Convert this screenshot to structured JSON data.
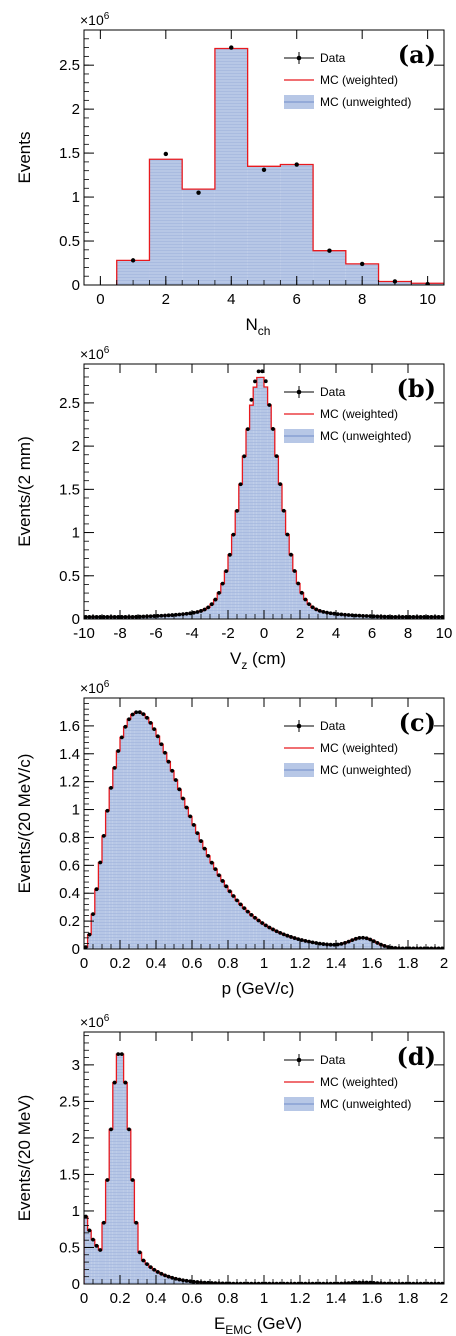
{
  "legend": {
    "data": "Data",
    "mc_weighted": "MC (weighted)",
    "mc_unweighted": "MC (unweighted)"
  },
  "colors": {
    "mc_weighted_line": "#e8191e",
    "mc_unweighted_fill": "#b7c7e6",
    "mc_unweighted_line": "#5b78c0",
    "data_marker": "#000000"
  },
  "multiplier": "×10",
  "multiplier_exp": "6",
  "chart_data": [
    {
      "type": "bar",
      "panel_label": "(a)",
      "xlabel": "N",
      "xlabel_sub": "ch",
      "ylabel": "Events",
      "xlim": [
        -0.5,
        10.5
      ],
      "ylim": [
        0,
        2.9
      ],
      "xticks": [
        "0",
        "2",
        "4",
        "6",
        "8",
        "10"
      ],
      "yticks": [
        "0",
        "0.5",
        "1",
        "1.5",
        "2",
        "2.5"
      ],
      "bin_edges": [
        0.5,
        1.5,
        2.5,
        3.5,
        4.5,
        5.5,
        6.5,
        7.5,
        8.5,
        9.5,
        10.5
      ],
      "mc": [
        0.28,
        1.43,
        1.09,
        2.69,
        1.35,
        1.37,
        0.39,
        0.24,
        0.04,
        0.02
      ],
      "data": [
        0.28,
        1.49,
        1.05,
        2.7,
        1.31,
        1.37,
        0.39,
        0.24,
        0.04,
        0.01
      ]
    },
    {
      "type": "bar",
      "panel_label": "(b)",
      "xlabel": "V",
      "xlabel_sub": "z",
      "xlabel_unit": " (cm)",
      "ylabel": "Events/(2 mm)",
      "xlim": [
        -10,
        10
      ],
      "ylim": [
        0,
        2.95
      ],
      "xticks": [
        "-10",
        "-8",
        "-6",
        "-4",
        "-2",
        "0",
        "2",
        "4",
        "6",
        "8",
        "10"
      ],
      "yticks": [
        "0",
        "0.5",
        "1",
        "1.5",
        "2",
        "2.5"
      ],
      "shape": {
        "peak": 2.78,
        "center": -0.2,
        "sigma": 1.0,
        "tail": 0.03
      },
      "data_peak": 2.85
    },
    {
      "type": "bar",
      "panel_label": "(c)",
      "xlabel": "p (GeV/c)",
      "ylabel": "Events/(20 MeV/c)",
      "xlim": [
        0,
        2
      ],
      "ylim": [
        0,
        1.8
      ],
      "xticks": [
        "0",
        "0.2",
        "0.4",
        "0.6",
        "0.8",
        "1",
        "1.2",
        "1.4",
        "1.6",
        "1.8",
        "2"
      ],
      "yticks": [
        "0",
        "0.2",
        "0.4",
        "0.6",
        "0.8",
        "1",
        "1.2",
        "1.4",
        "1.6"
      ],
      "peak": 1.7,
      "peak_x": 0.3,
      "secondary_peak": 0.07,
      "secondary_x": 1.55
    },
    {
      "type": "bar",
      "panel_label": "(d)",
      "xlabel": "E",
      "xlabel_sub": "EMC",
      "xlabel_unit": " (GeV)",
      "ylabel": "Events/(20 MeV)",
      "xlim": [
        0,
        2
      ],
      "ylim": [
        0,
        3.45
      ],
      "xticks": [
        "0",
        "0.2",
        "0.4",
        "0.6",
        "0.8",
        "1",
        "1.2",
        "1.4",
        "1.6",
        "1.8",
        "2"
      ],
      "yticks": [
        "0",
        "0.5",
        "1",
        "1.5",
        "2",
        "2.5",
        "3"
      ],
      "peak": 3.2,
      "peak_x": 0.2,
      "start": 0.7,
      "secondary_peak": 0.02,
      "secondary_x": 1.55
    }
  ]
}
